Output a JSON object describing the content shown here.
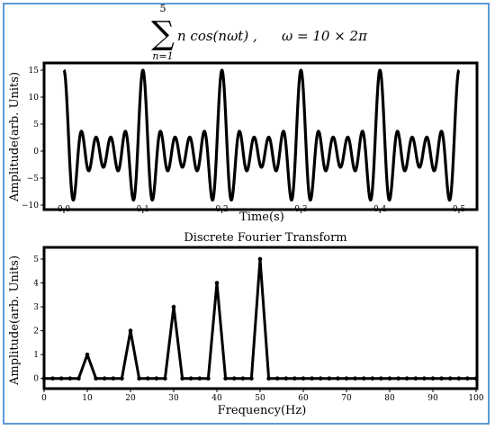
{
  "formula": {
    "sum_upper": "5",
    "sum_lower": "n=1",
    "body": "n cos(nωt) ,",
    "omega": "ω = 10 × 2π"
  },
  "chart_data": [
    {
      "type": "line",
      "title": "",
      "xlabel": "Time(s)",
      "ylabel": "Amplitude(arb. Units)",
      "xlim": [
        0.0,
        0.5
      ],
      "ylim": [
        -10,
        15.5
      ],
      "xticks": [
        "0.0",
        "0.1",
        "0.2",
        "0.3",
        "0.4",
        "0.5"
      ],
      "yticks": [
        "−10",
        "−5",
        "0",
        "5",
        "10",
        "15"
      ],
      "series": [
        {
          "function": "sum_{n=1}^{5} n cos(n * 10 * 2π * t)",
          "harmonics": [
            1,
            2,
            3,
            4,
            5
          ],
          "fundamental_hz": 10,
          "t_range": [
            0.0,
            0.5
          ],
          "max": 15,
          "min": -9.2
        }
      ],
      "grid": false,
      "color": "#000000"
    },
    {
      "type": "line",
      "title": "Discrete Fourier Transform",
      "xlabel": "Frequency(Hz)",
      "ylabel": "Amplitude(arb. Units)",
      "xlim": [
        0,
        100
      ],
      "ylim": [
        -0.2,
        5.15
      ],
      "xticks": [
        "0",
        "10",
        "20",
        "30",
        "40",
        "50",
        "60",
        "70",
        "80",
        "90",
        "100"
      ],
      "yticks": [
        "0",
        "1",
        "2",
        "3",
        "4",
        "5"
      ],
      "series": [
        {
          "x": [
            0,
            2,
            4,
            6,
            8,
            10,
            12,
            14,
            16,
            18,
            20,
            22,
            24,
            26,
            28,
            30,
            32,
            34,
            36,
            38,
            40,
            42,
            44,
            46,
            48,
            50,
            52,
            54,
            56,
            58,
            60,
            62,
            64,
            66,
            68,
            70,
            72,
            74,
            76,
            78,
            80,
            82,
            84,
            86,
            88,
            90,
            92,
            94,
            96,
            98,
            100
          ],
          "y": [
            0,
            0,
            0,
            0,
            0,
            1,
            0,
            0,
            0,
            0,
            2,
            0,
            0,
            0,
            0,
            3,
            0,
            0,
            0,
            0,
            4,
            0,
            0,
            0,
            0,
            5,
            0,
            0,
            0,
            0,
            0,
            0,
            0,
            0,
            0,
            0,
            0,
            0,
            0,
            0,
            0,
            0,
            0,
            0,
            0,
            0,
            0,
            0,
            0,
            0,
            0
          ]
        }
      ],
      "markers": true,
      "grid": false,
      "color": "#000000"
    }
  ]
}
